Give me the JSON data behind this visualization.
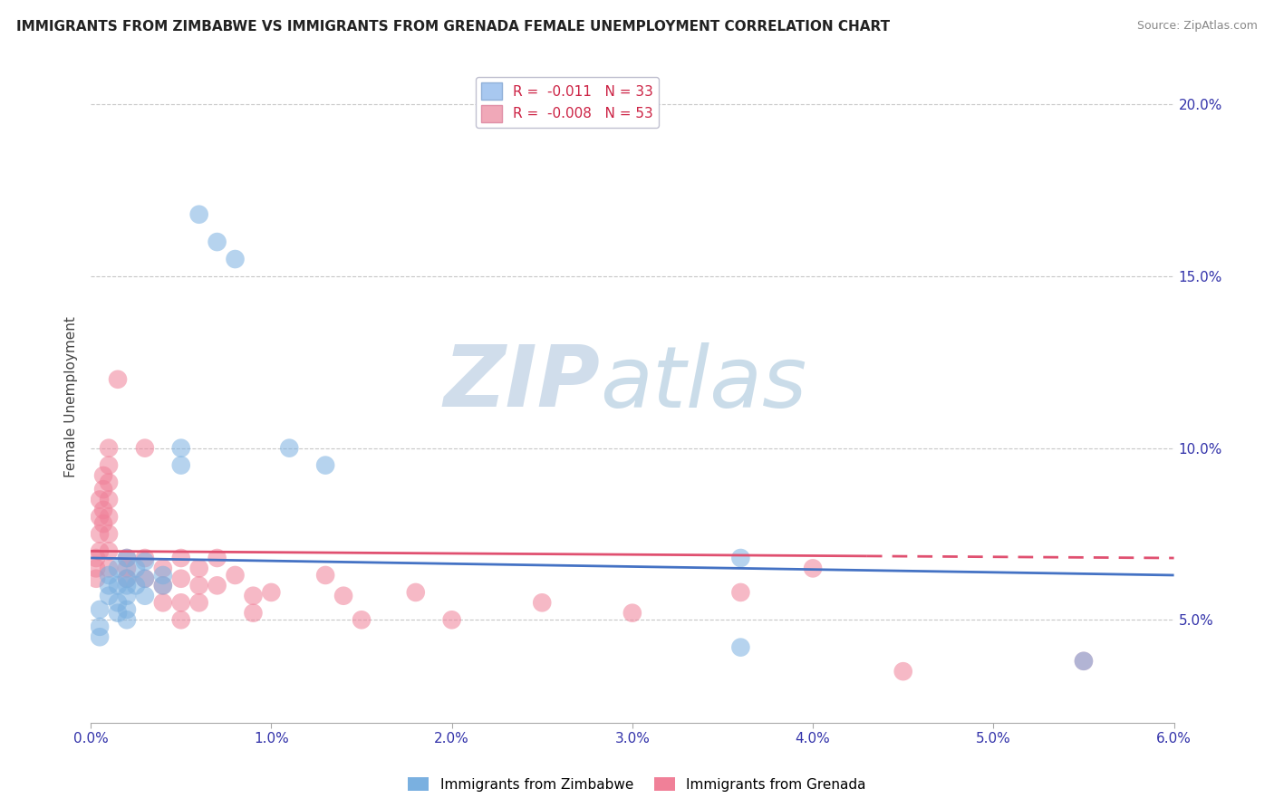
{
  "title": "IMMIGRANTS FROM ZIMBABWE VS IMMIGRANTS FROM GRENADA FEMALE UNEMPLOYMENT CORRELATION CHART",
  "source": "Source: ZipAtlas.com",
  "ylabel": "Female Unemployment",
  "xlim": [
    0.0,
    0.06
  ],
  "ylim": [
    0.02,
    0.21
  ],
  "yticks_right": [
    0.05,
    0.1,
    0.15,
    0.2
  ],
  "ytick_labels_right": [
    "5.0%",
    "10.0%",
    "15.0%",
    "20.0%"
  ],
  "xticks": [
    0.0,
    0.01,
    0.02,
    0.03,
    0.04,
    0.05,
    0.06
  ],
  "xtick_labels": [
    "0.0%",
    "1.0%",
    "2.0%",
    "3.0%",
    "4.0%",
    "5.0%",
    "6.0%"
  ],
  "legend_entries": [
    {
      "label": "R =  -0.011   N = 33",
      "color": "#a8c8f0"
    },
    {
      "label": "R =  -0.008   N = 53",
      "color": "#f0a8b8"
    }
  ],
  "zimbabwe_color": "#7ab0e0",
  "grenada_color": "#f08098",
  "zimbabwe_line_color": "#4472c4",
  "grenada_line_color": "#e05070",
  "watermark_zip": "ZIP",
  "watermark_atlas": "atlas",
  "zimbabwe_points": [
    [
      0.0005,
      0.053
    ],
    [
      0.0005,
      0.048
    ],
    [
      0.0005,
      0.045
    ],
    [
      0.001,
      0.063
    ],
    [
      0.001,
      0.06
    ],
    [
      0.001,
      0.057
    ],
    [
      0.0015,
      0.065
    ],
    [
      0.0015,
      0.06
    ],
    [
      0.0015,
      0.055
    ],
    [
      0.0015,
      0.052
    ],
    [
      0.002,
      0.068
    ],
    [
      0.002,
      0.062
    ],
    [
      0.002,
      0.06
    ],
    [
      0.002,
      0.057
    ],
    [
      0.002,
      0.053
    ],
    [
      0.002,
      0.05
    ],
    [
      0.0025,
      0.065
    ],
    [
      0.0025,
      0.06
    ],
    [
      0.003,
      0.067
    ],
    [
      0.003,
      0.062
    ],
    [
      0.003,
      0.057
    ],
    [
      0.004,
      0.063
    ],
    [
      0.004,
      0.06
    ],
    [
      0.005,
      0.1
    ],
    [
      0.005,
      0.095
    ],
    [
      0.006,
      0.168
    ],
    [
      0.007,
      0.16
    ],
    [
      0.008,
      0.155
    ],
    [
      0.011,
      0.1
    ],
    [
      0.013,
      0.095
    ],
    [
      0.036,
      0.068
    ],
    [
      0.036,
      0.042
    ],
    [
      0.055,
      0.038
    ]
  ],
  "grenada_points": [
    [
      0.0003,
      0.068
    ],
    [
      0.0003,
      0.065
    ],
    [
      0.0003,
      0.062
    ],
    [
      0.0005,
      0.085
    ],
    [
      0.0005,
      0.08
    ],
    [
      0.0005,
      0.075
    ],
    [
      0.0005,
      0.07
    ],
    [
      0.0007,
      0.092
    ],
    [
      0.0007,
      0.088
    ],
    [
      0.0007,
      0.082
    ],
    [
      0.0007,
      0.078
    ],
    [
      0.001,
      0.1
    ],
    [
      0.001,
      0.095
    ],
    [
      0.001,
      0.09
    ],
    [
      0.001,
      0.085
    ],
    [
      0.001,
      0.08
    ],
    [
      0.001,
      0.075
    ],
    [
      0.001,
      0.07
    ],
    [
      0.001,
      0.065
    ],
    [
      0.0015,
      0.12
    ],
    [
      0.002,
      0.068
    ],
    [
      0.002,
      0.065
    ],
    [
      0.002,
      0.062
    ],
    [
      0.003,
      0.1
    ],
    [
      0.003,
      0.068
    ],
    [
      0.003,
      0.062
    ],
    [
      0.004,
      0.065
    ],
    [
      0.004,
      0.06
    ],
    [
      0.004,
      0.055
    ],
    [
      0.005,
      0.068
    ],
    [
      0.005,
      0.062
    ],
    [
      0.005,
      0.055
    ],
    [
      0.005,
      0.05
    ],
    [
      0.006,
      0.065
    ],
    [
      0.006,
      0.06
    ],
    [
      0.006,
      0.055
    ],
    [
      0.007,
      0.068
    ],
    [
      0.007,
      0.06
    ],
    [
      0.008,
      0.063
    ],
    [
      0.009,
      0.057
    ],
    [
      0.009,
      0.052
    ],
    [
      0.01,
      0.058
    ],
    [
      0.013,
      0.063
    ],
    [
      0.014,
      0.057
    ],
    [
      0.015,
      0.05
    ],
    [
      0.018,
      0.058
    ],
    [
      0.02,
      0.05
    ],
    [
      0.025,
      0.055
    ],
    [
      0.03,
      0.052
    ],
    [
      0.036,
      0.058
    ],
    [
      0.04,
      0.065
    ],
    [
      0.045,
      0.035
    ],
    [
      0.055,
      0.038
    ]
  ]
}
